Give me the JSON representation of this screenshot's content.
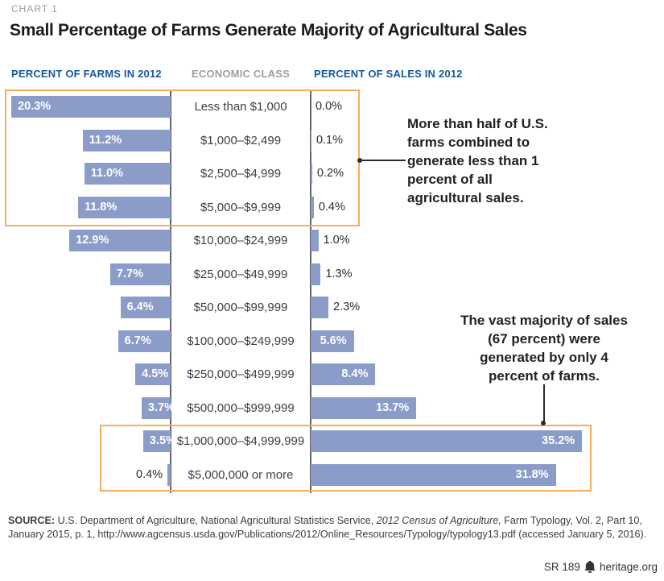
{
  "kicker": "CHART 1",
  "title": "Small Percentage of Farms Generate Majority of Agricultural Sales",
  "columns": {
    "farms_header": "PERCENT OF FARMS IN 2012",
    "econ_header": "ECONOMIC CLASS",
    "sales_header": "PERCENT OF SALES IN 2012"
  },
  "chart_data": {
    "type": "bar",
    "orientation": "horizontal-butterfly",
    "categories": [
      "Less than $1,000",
      "$1,000–$2,499",
      "$2,500–$4,999",
      "$5,000–$9,999",
      "$10,000–$24,999",
      "$25,000–$49,999",
      "$50,000–$99,999",
      "$100,000–$249,999",
      "$250,000–$499,999",
      "$500,000–$999,999",
      "$1,000,000–$4,999,999",
      "$5,000,000 or more"
    ],
    "series": [
      {
        "name": "Percent of Farms in 2012",
        "values": [
          20.3,
          11.2,
          11.0,
          11.8,
          12.9,
          7.7,
          6.4,
          6.7,
          4.5,
          3.7,
          3.5,
          0.4
        ]
      },
      {
        "name": "Percent of Sales in 2012",
        "values": [
          0.0,
          0.1,
          0.2,
          0.4,
          1.0,
          1.3,
          2.3,
          5.6,
          8.4,
          13.7,
          35.2,
          31.8
        ]
      }
    ],
    "value_suffix": "%",
    "highlight_groups": [
      {
        "rows": [
          1,
          2,
          3,
          4
        ],
        "note": "More than half of U.S. farms combined to generate less than 1 percent of all agricultural sales."
      },
      {
        "rows": [
          11,
          12
        ],
        "note": "The vast majority of sales (67 percent) were generated by only 4 percent of farms."
      }
    ]
  },
  "annotations": {
    "top": {
      "lines": [
        "More than half of U.S.",
        "farms combined to",
        "generate less than 1",
        "percent of all",
        "agricultural sales."
      ]
    },
    "bottom": {
      "lines": [
        "The vast majority of sales",
        "(67 percent) were",
        "generated by only 4",
        "percent of farms."
      ]
    }
  },
  "colors": {
    "bar": "#8B9CC8",
    "highlight": "#F8AD5C",
    "header_blue": "#15599F",
    "header_gray": "#9CA0A4"
  },
  "source": {
    "label": "SOURCE:",
    "segments": [
      {
        "text": " U.S. Department of Agriculture, National Agricultural Statistics Service, ",
        "style": "normal"
      },
      {
        "text": "2012 Census of Agriculture,",
        "style": "italic"
      },
      {
        "text": " Farm Typology, Vol. 2, Part 10, January 2015, p. 1, http://www.agcensus.usda.gov/Publications/2012/Online_Resources/Typology/typology13.pdf (accessed January 5, 2016).",
        "style": "normal"
      }
    ]
  },
  "footer": {
    "report_id": "SR 189",
    "site": "heritage.org"
  }
}
